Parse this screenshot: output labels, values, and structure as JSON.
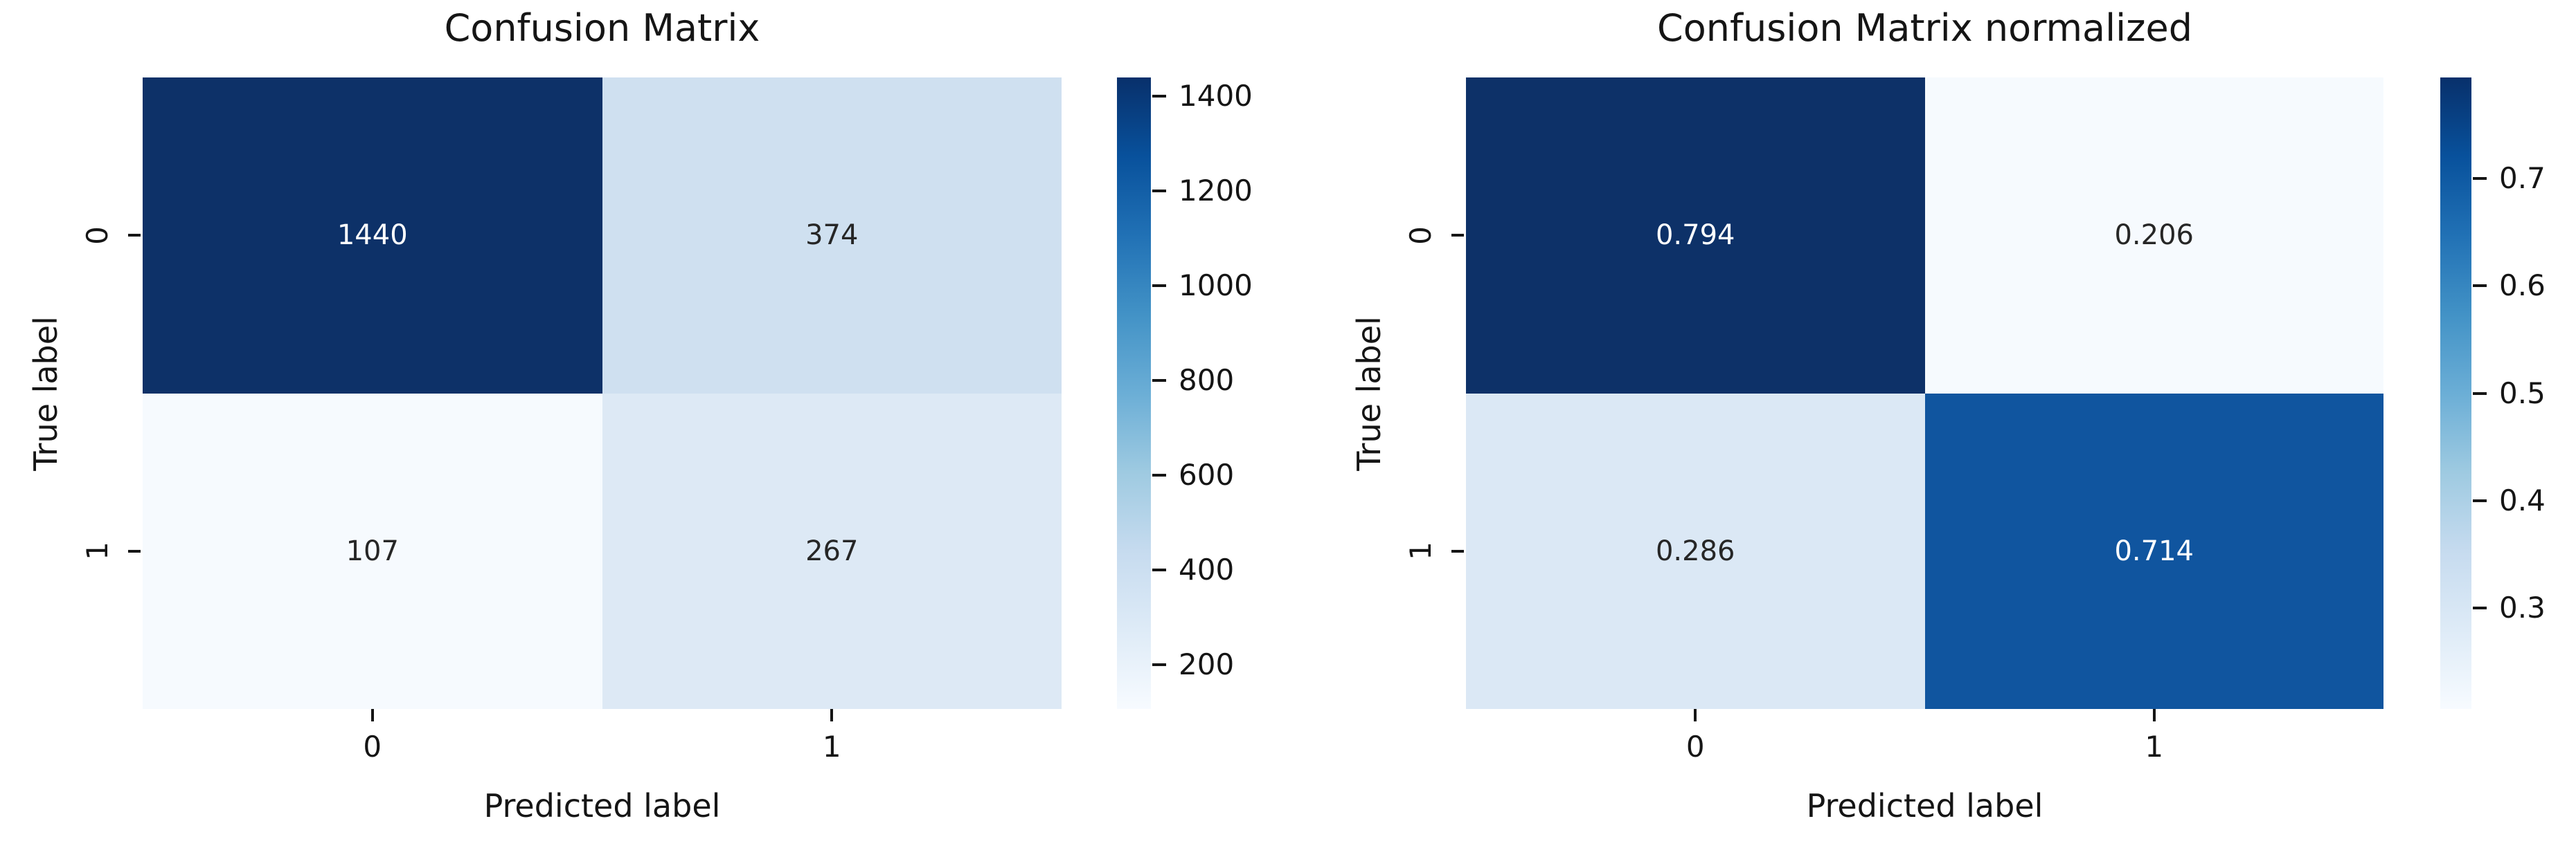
{
  "figure": {
    "background": "#ffffff",
    "text_color": "#151515",
    "annotation_dark_text": "#262626",
    "annotation_light_text": "#ffffff"
  },
  "chart_data": [
    {
      "type": "heatmap",
      "title": "Confusion Matrix",
      "xlabel": "Predicted label",
      "ylabel": "True label",
      "x_categories": [
        "0",
        "1"
      ],
      "y_categories": [
        "0",
        "1"
      ],
      "values": [
        [
          1440,
          374
        ],
        [
          107,
          267
        ]
      ],
      "value_labels": [
        [
          "1440",
          "374"
        ],
        [
          "107",
          "267"
        ]
      ],
      "vmin": 107,
      "vmax": 1440,
      "colormap": "Blues",
      "colormap_stops": [
        "#f7fbff",
        "#deebf7",
        "#c6dbef",
        "#9ecae1",
        "#6baed6",
        "#4292c6",
        "#2171b5",
        "#08519c",
        "#08306b"
      ],
      "colorbar_ticks": [
        200,
        400,
        600,
        800,
        1000,
        1200,
        1400
      ],
      "colorbar_tick_labels": [
        "200",
        "400",
        "600",
        "800",
        "1000",
        "1200",
        "1400"
      ],
      "cell_colors": [
        [
          "#0d3168",
          "#cfe0f0"
        ],
        [
          "#f6fafe",
          "#dde9f5"
        ]
      ],
      "cell_text_colors": [
        [
          "#ffffff",
          "#262626"
        ],
        [
          "#262626",
          "#262626"
        ]
      ],
      "legend_position": "right-colorbar",
      "grid": false
    },
    {
      "type": "heatmap",
      "title": "Confusion Matrix normalized",
      "xlabel": "Predicted label",
      "ylabel": "True label",
      "x_categories": [
        "0",
        "1"
      ],
      "y_categories": [
        "0",
        "1"
      ],
      "values": [
        [
          0.794,
          0.206
        ],
        [
          0.286,
          0.714
        ]
      ],
      "value_labels": [
        [
          "0.794",
          "0.206"
        ],
        [
          "0.286",
          "0.714"
        ]
      ],
      "vmin": 0.206,
      "vmax": 0.794,
      "colormap": "Blues",
      "colormap_stops": [
        "#f7fbff",
        "#deebf7",
        "#c6dbef",
        "#9ecae1",
        "#6baed6",
        "#4292c6",
        "#2171b5",
        "#08519c",
        "#08306b"
      ],
      "colorbar_ticks": [
        0.3,
        0.4,
        0.5,
        0.6,
        0.7
      ],
      "colorbar_tick_labels": [
        "0.3",
        "0.4",
        "0.5",
        "0.6",
        "0.7"
      ],
      "cell_colors": [
        [
          "#0d3168",
          "#f6fafe"
        ],
        [
          "#dbe8f5",
          "#10559f"
        ]
      ],
      "cell_text_colors": [
        [
          "#ffffff",
          "#262626"
        ],
        [
          "#262626",
          "#ffffff"
        ]
      ],
      "legend_position": "right-colorbar",
      "grid": false
    }
  ]
}
